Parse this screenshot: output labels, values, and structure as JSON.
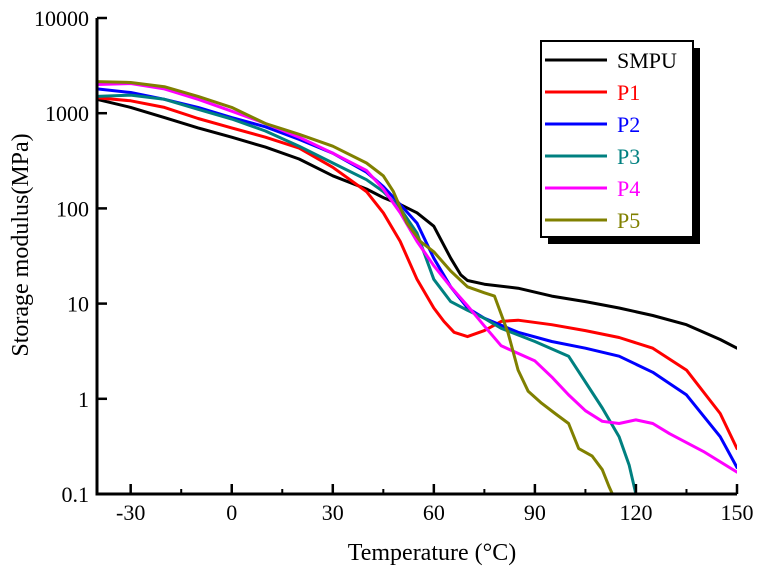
{
  "chart_data": {
    "type": "line",
    "title": "",
    "xlabel": "Temperature (°C)",
    "ylabel": "Storage modulus(MPa)",
    "xlim": [
      -40,
      150
    ],
    "ylim": [
      0.1,
      10000
    ],
    "yscale": "log",
    "x_ticks": [
      -30,
      0,
      30,
      60,
      90,
      120,
      150
    ],
    "y_ticks": [
      {
        "value": 0.1,
        "label": "0.1"
      },
      {
        "value": 1,
        "label": "1"
      },
      {
        "value": 10,
        "label": "10"
      },
      {
        "value": 100,
        "label": "100"
      },
      {
        "value": 1000,
        "label": "1000"
      },
      {
        "value": 10000,
        "label": "10000"
      }
    ],
    "grid": false,
    "legend_position": "top-right",
    "series": [
      {
        "name": "SMPU",
        "color": "#000000",
        "points": [
          [
            -40,
            1400
          ],
          [
            -30,
            1150
          ],
          [
            -20,
            900
          ],
          [
            -10,
            700
          ],
          [
            0,
            560
          ],
          [
            10,
            440
          ],
          [
            20,
            330
          ],
          [
            30,
            220
          ],
          [
            40,
            160
          ],
          [
            45,
            130
          ],
          [
            50,
            110
          ],
          [
            55,
            90
          ],
          [
            60,
            65
          ],
          [
            65,
            30
          ],
          [
            68,
            20
          ],
          [
            70,
            17.5
          ],
          [
            75,
            16
          ],
          [
            85,
            14.5
          ],
          [
            95,
            12
          ],
          [
            105,
            10.5
          ],
          [
            115,
            9
          ],
          [
            125,
            7.5
          ],
          [
            135,
            6
          ],
          [
            145,
            4.2
          ],
          [
            150,
            3.4
          ]
        ]
      },
      {
        "name": "P1",
        "color": "#ff0000",
        "points": [
          [
            -40,
            1450
          ],
          [
            -30,
            1350
          ],
          [
            -20,
            1150
          ],
          [
            -10,
            880
          ],
          [
            0,
            700
          ],
          [
            10,
            560
          ],
          [
            20,
            430
          ],
          [
            30,
            270
          ],
          [
            40,
            150
          ],
          [
            45,
            90
          ],
          [
            50,
            45
          ],
          [
            55,
            18
          ],
          [
            60,
            9
          ],
          [
            63,
            6.5
          ],
          [
            66,
            5
          ],
          [
            70,
            4.5
          ],
          [
            75,
            5.2
          ],
          [
            80,
            6.5
          ],
          [
            85,
            6.7
          ],
          [
            95,
            6
          ],
          [
            105,
            5.2
          ],
          [
            115,
            4.4
          ],
          [
            125,
            3.4
          ],
          [
            135,
            2
          ],
          [
            145,
            0.7
          ],
          [
            150,
            0.3
          ]
        ]
      },
      {
        "name": "P2",
        "color": "#0000ff",
        "points": [
          [
            -40,
            1800
          ],
          [
            -30,
            1650
          ],
          [
            -20,
            1400
          ],
          [
            -10,
            1150
          ],
          [
            0,
            900
          ],
          [
            10,
            720
          ],
          [
            20,
            530
          ],
          [
            30,
            380
          ],
          [
            40,
            240
          ],
          [
            45,
            170
          ],
          [
            50,
            110
          ],
          [
            55,
            70
          ],
          [
            60,
            30
          ],
          [
            65,
            15
          ],
          [
            70,
            9
          ],
          [
            75,
            7
          ],
          [
            85,
            5
          ],
          [
            95,
            4
          ],
          [
            105,
            3.4
          ],
          [
            115,
            2.8
          ],
          [
            125,
            1.9
          ],
          [
            135,
            1.1
          ],
          [
            145,
            0.4
          ],
          [
            150,
            0.19
          ]
        ]
      },
      {
        "name": "P3",
        "color": "#008080",
        "points": [
          [
            -40,
            1500
          ],
          [
            -30,
            1550
          ],
          [
            -20,
            1400
          ],
          [
            -10,
            1100
          ],
          [
            0,
            870
          ],
          [
            10,
            650
          ],
          [
            20,
            450
          ],
          [
            30,
            300
          ],
          [
            40,
            200
          ],
          [
            45,
            150
          ],
          [
            50,
            100
          ],
          [
            55,
            55
          ],
          [
            58,
            28
          ],
          [
            60,
            18
          ],
          [
            65,
            10.5
          ],
          [
            70,
            8.5
          ],
          [
            75,
            7
          ],
          [
            80,
            5.5
          ],
          [
            90,
            4
          ],
          [
            100,
            2.8
          ],
          [
            105,
            1.5
          ],
          [
            110,
            0.8
          ],
          [
            115,
            0.4
          ],
          [
            118,
            0.2
          ],
          [
            120,
            0.1
          ]
        ]
      },
      {
        "name": "P4",
        "color": "#ff00ff",
        "points": [
          [
            -40,
            2000
          ],
          [
            -30,
            2050
          ],
          [
            -20,
            1800
          ],
          [
            -10,
            1400
          ],
          [
            0,
            1050
          ],
          [
            10,
            780
          ],
          [
            20,
            560
          ],
          [
            30,
            380
          ],
          [
            40,
            250
          ],
          [
            45,
            160
          ],
          [
            50,
            90
          ],
          [
            55,
            45
          ],
          [
            60,
            25
          ],
          [
            65,
            15
          ],
          [
            70,
            9.5
          ],
          [
            75,
            5.8
          ],
          [
            80,
            3.6
          ],
          [
            85,
            3
          ],
          [
            90,
            2.5
          ],
          [
            95,
            1.7
          ],
          [
            100,
            1.1
          ],
          [
            105,
            0.75
          ],
          [
            110,
            0.58
          ],
          [
            115,
            0.55
          ],
          [
            120,
            0.6
          ],
          [
            125,
            0.55
          ],
          [
            130,
            0.43
          ],
          [
            140,
            0.28
          ],
          [
            150,
            0.17
          ]
        ]
      },
      {
        "name": "P5",
        "color": "#808000",
        "points": [
          [
            -40,
            2150
          ],
          [
            -30,
            2100
          ],
          [
            -20,
            1900
          ],
          [
            -10,
            1500
          ],
          [
            0,
            1150
          ],
          [
            10,
            780
          ],
          [
            20,
            600
          ],
          [
            30,
            450
          ],
          [
            40,
            300
          ],
          [
            45,
            220
          ],
          [
            48,
            150
          ],
          [
            52,
            70
          ],
          [
            56,
            45
          ],
          [
            60,
            35
          ],
          [
            65,
            22
          ],
          [
            70,
            15
          ],
          [
            75,
            13
          ],
          [
            78,
            12
          ],
          [
            82,
            5
          ],
          [
            85,
            2
          ],
          [
            88,
            1.2
          ],
          [
            92,
            0.9
          ],
          [
            96,
            0.7
          ],
          [
            100,
            0.55
          ],
          [
            103,
            0.3
          ],
          [
            107,
            0.25
          ],
          [
            110,
            0.18
          ],
          [
            112,
            0.12
          ],
          [
            113,
            0.1
          ]
        ]
      }
    ]
  }
}
